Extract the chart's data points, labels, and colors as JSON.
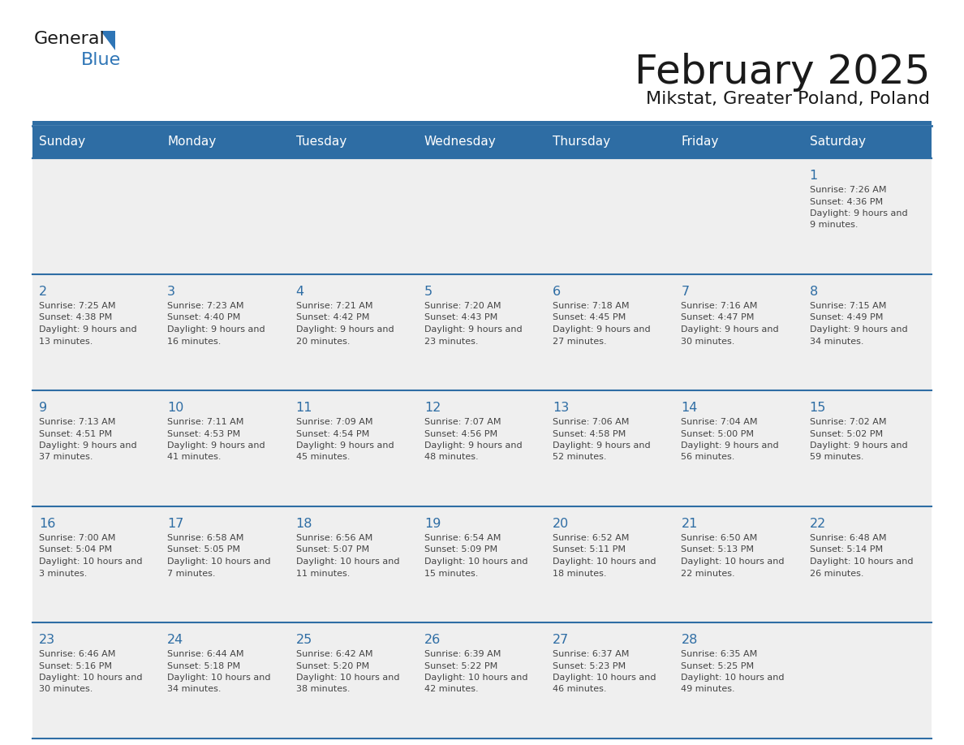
{
  "title": "February 2025",
  "subtitle": "Mikstat, Greater Poland, Poland",
  "days_of_week": [
    "Sunday",
    "Monday",
    "Tuesday",
    "Wednesday",
    "Thursday",
    "Friday",
    "Saturday"
  ],
  "header_bg": "#2e6da4",
  "header_text": "#ffffff",
  "cell_bg": "#efefef",
  "day_num_color": "#2e6da4",
  "text_color": "#444444",
  "border_color": "#2e6da4",
  "calendar_data": [
    [
      null,
      null,
      null,
      null,
      null,
      null,
      {
        "day": 1,
        "sunrise": "7:26 AM",
        "sunset": "4:36 PM",
        "daylight": "9 hours and 9 minutes."
      }
    ],
    [
      {
        "day": 2,
        "sunrise": "7:25 AM",
        "sunset": "4:38 PM",
        "daylight": "9 hours and 13 minutes."
      },
      {
        "day": 3,
        "sunrise": "7:23 AM",
        "sunset": "4:40 PM",
        "daylight": "9 hours and 16 minutes."
      },
      {
        "day": 4,
        "sunrise": "7:21 AM",
        "sunset": "4:42 PM",
        "daylight": "9 hours and 20 minutes."
      },
      {
        "day": 5,
        "sunrise": "7:20 AM",
        "sunset": "4:43 PM",
        "daylight": "9 hours and 23 minutes."
      },
      {
        "day": 6,
        "sunrise": "7:18 AM",
        "sunset": "4:45 PM",
        "daylight": "9 hours and 27 minutes."
      },
      {
        "day": 7,
        "sunrise": "7:16 AM",
        "sunset": "4:47 PM",
        "daylight": "9 hours and 30 minutes."
      },
      {
        "day": 8,
        "sunrise": "7:15 AM",
        "sunset": "4:49 PM",
        "daylight": "9 hours and 34 minutes."
      }
    ],
    [
      {
        "day": 9,
        "sunrise": "7:13 AM",
        "sunset": "4:51 PM",
        "daylight": "9 hours and 37 minutes."
      },
      {
        "day": 10,
        "sunrise": "7:11 AM",
        "sunset": "4:53 PM",
        "daylight": "9 hours and 41 minutes."
      },
      {
        "day": 11,
        "sunrise": "7:09 AM",
        "sunset": "4:54 PM",
        "daylight": "9 hours and 45 minutes."
      },
      {
        "day": 12,
        "sunrise": "7:07 AM",
        "sunset": "4:56 PM",
        "daylight": "9 hours and 48 minutes."
      },
      {
        "day": 13,
        "sunrise": "7:06 AM",
        "sunset": "4:58 PM",
        "daylight": "9 hours and 52 minutes."
      },
      {
        "day": 14,
        "sunrise": "7:04 AM",
        "sunset": "5:00 PM",
        "daylight": "9 hours and 56 minutes."
      },
      {
        "day": 15,
        "sunrise": "7:02 AM",
        "sunset": "5:02 PM",
        "daylight": "9 hours and 59 minutes."
      }
    ],
    [
      {
        "day": 16,
        "sunrise": "7:00 AM",
        "sunset": "5:04 PM",
        "daylight": "10 hours and 3 minutes."
      },
      {
        "day": 17,
        "sunrise": "6:58 AM",
        "sunset": "5:05 PM",
        "daylight": "10 hours and 7 minutes."
      },
      {
        "day": 18,
        "sunrise": "6:56 AM",
        "sunset": "5:07 PM",
        "daylight": "10 hours and 11 minutes."
      },
      {
        "day": 19,
        "sunrise": "6:54 AM",
        "sunset": "5:09 PM",
        "daylight": "10 hours and 15 minutes."
      },
      {
        "day": 20,
        "sunrise": "6:52 AM",
        "sunset": "5:11 PM",
        "daylight": "10 hours and 18 minutes."
      },
      {
        "day": 21,
        "sunrise": "6:50 AM",
        "sunset": "5:13 PM",
        "daylight": "10 hours and 22 minutes."
      },
      {
        "day": 22,
        "sunrise": "6:48 AM",
        "sunset": "5:14 PM",
        "daylight": "10 hours and 26 minutes."
      }
    ],
    [
      {
        "day": 23,
        "sunrise": "6:46 AM",
        "sunset": "5:16 PM",
        "daylight": "10 hours and 30 minutes."
      },
      {
        "day": 24,
        "sunrise": "6:44 AM",
        "sunset": "5:18 PM",
        "daylight": "10 hours and 34 minutes."
      },
      {
        "day": 25,
        "sunrise": "6:42 AM",
        "sunset": "5:20 PM",
        "daylight": "10 hours and 38 minutes."
      },
      {
        "day": 26,
        "sunrise": "6:39 AM",
        "sunset": "5:22 PM",
        "daylight": "10 hours and 42 minutes."
      },
      {
        "day": 27,
        "sunrise": "6:37 AM",
        "sunset": "5:23 PM",
        "daylight": "10 hours and 46 minutes."
      },
      {
        "day": 28,
        "sunrise": "6:35 AM",
        "sunset": "5:25 PM",
        "daylight": "10 hours and 49 minutes."
      },
      null
    ]
  ],
  "fig_width": 11.88,
  "fig_height": 9.18,
  "logo_text_general": "General",
  "logo_text_blue": "Blue",
  "logo_color_general": "#1a1a1a",
  "logo_color_blue": "#2e75b6"
}
